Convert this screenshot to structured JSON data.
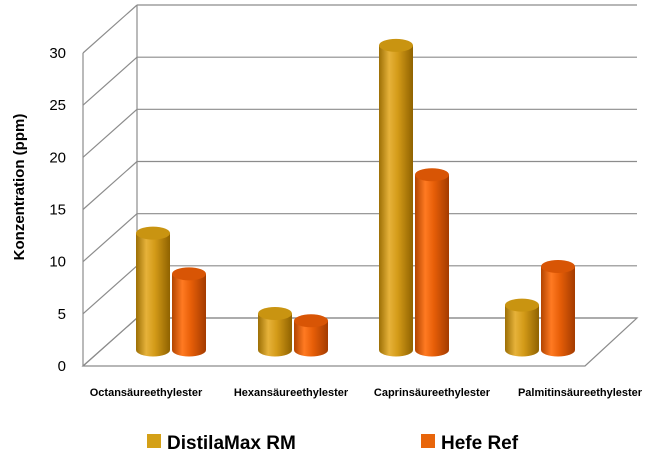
{
  "chart_data": {
    "type": "bar",
    "style": "3d-cylinder",
    "categories": [
      "Octansäureethylester",
      "Hexansäureethylester",
      "Caprinsäureethylester",
      "Palmitinsäureethylester"
    ],
    "series": [
      {
        "name": "DistilaMax RM",
        "color": "#D4A017",
        "values": [
          11.2,
          3.5,
          29.2,
          4.3
        ]
      },
      {
        "name": "Hefe Ref",
        "color": "#E8650A",
        "values": [
          7.3,
          2.8,
          16.8,
          8.0
        ]
      }
    ],
    "ylabel": "Konzentration  (ppm)",
    "ylim": [
      0,
      30
    ],
    "yticks": [
      "0",
      "5",
      "10",
      "15",
      "20",
      "25",
      "30"
    ],
    "grid": true,
    "legend_position": "bottom"
  }
}
